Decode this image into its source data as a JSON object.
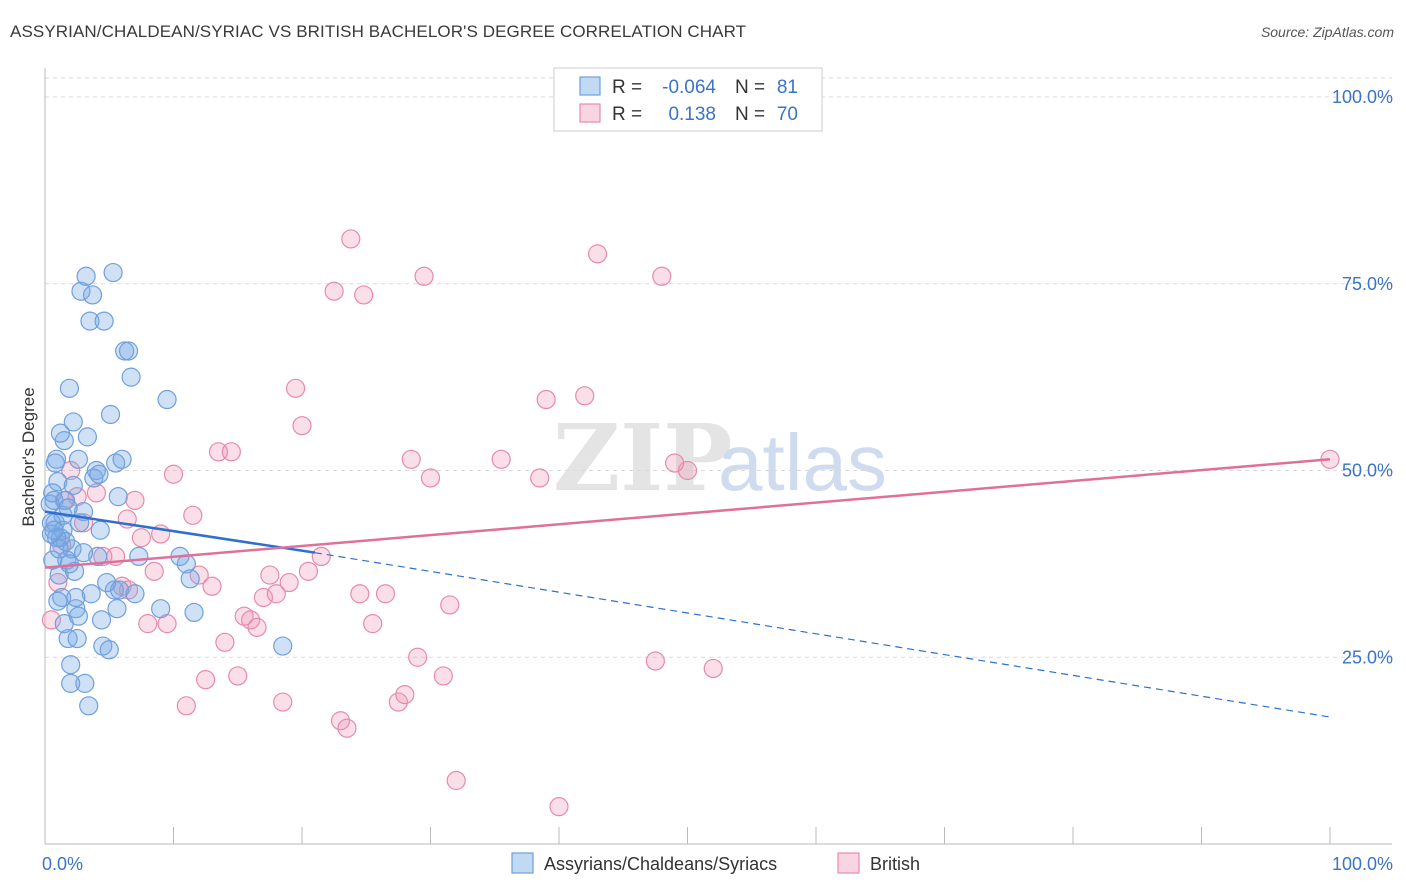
{
  "header": {
    "title": "ASSYRIAN/CHALDEAN/SYRIAC VS BRITISH BACHELOR'S DEGREE CORRELATION CHART",
    "source": "Source: ZipAtlas.com"
  },
  "watermark": {
    "zip": "ZIP",
    "atlas": "atlas"
  },
  "colors": {
    "blue": "#6fa0dd",
    "blue_fill": "rgba(120,170,230,0.35)",
    "blue_line": "#2f6fcf",
    "pink": "#e88aab",
    "pink_fill": "rgba(240,150,180,0.30)",
    "pink_line": "#e07099",
    "tick_text": "#3b73c8",
    "grid": "#d9d9d9"
  },
  "legend": {
    "rows": [
      {
        "r_label": "R =",
        "r_value": "-0.064",
        "n_label": "N =",
        "n_value": "81"
      },
      {
        "r_label": "R =",
        "r_value": "0.138",
        "n_label": "N =",
        "n_value": "70"
      }
    ]
  },
  "chart_data": {
    "type": "scatter",
    "title": "ASSYRIAN/CHALDEAN/SYRIAC VS BRITISH BACHELOR'S DEGREE CORRELATION CHART",
    "xlabel": "",
    "ylabel": "Bachelor's Degree",
    "xlim": [
      0,
      100
    ],
    "ylim": [
      0,
      105
    ],
    "x_tick_labels": [
      "0.0%",
      "100.0%"
    ],
    "y_ticks": [
      25,
      50,
      75,
      100
    ],
    "y_tick_labels": [
      "25.0%",
      "50.0%",
      "75.0%",
      "100.0%"
    ],
    "legend_position": "top-center",
    "series": [
      {
        "name": "Assyrians/Chaldeans/Syriacs",
        "r": -0.064,
        "n": 81,
        "trend": {
          "x0": 0,
          "y0": 44.5,
          "x1": 21,
          "y1": 39,
          "x_dash_end": 100,
          "y_dash_end": 17
        },
        "points": [
          [
            0.4,
            45.5
          ],
          [
            0.5,
            41.5
          ],
          [
            0.6,
            38
          ],
          [
            0.7,
            46
          ],
          [
            0.8,
            43
          ],
          [
            0.9,
            51.5
          ],
          [
            1.0,
            48.5
          ],
          [
            1.1,
            36
          ],
          [
            1.2,
            41
          ],
          [
            1.3,
            33
          ],
          [
            1.4,
            42
          ],
          [
            1.5,
            54
          ],
          [
            1.6,
            40.5
          ],
          [
            1.7,
            38
          ],
          [
            1.8,
            27.5
          ],
          [
            1.9,
            61
          ],
          [
            2.0,
            24
          ],
          [
            2.1,
            39.5
          ],
          [
            2.2,
            56.5
          ],
          [
            2.3,
            36.5
          ],
          [
            2.4,
            31.5
          ],
          [
            2.5,
            27.5
          ],
          [
            2.6,
            51.5
          ],
          [
            2.8,
            74
          ],
          [
            3.0,
            44.5
          ],
          [
            3.1,
            21.5
          ],
          [
            3.2,
            76
          ],
          [
            3.3,
            54.5
          ],
          [
            3.4,
            18.5
          ],
          [
            3.5,
            70
          ],
          [
            3.6,
            33.5
          ],
          [
            3.8,
            49
          ],
          [
            4.0,
            50
          ],
          [
            4.1,
            38.5
          ],
          [
            4.3,
            42
          ],
          [
            4.4,
            30
          ],
          [
            4.5,
            26.5
          ],
          [
            4.6,
            70
          ],
          [
            5.0,
            26
          ],
          [
            5.1,
            57.5
          ],
          [
            5.3,
            76.5
          ],
          [
            5.4,
            34
          ],
          [
            5.5,
            51
          ],
          [
            5.6,
            31.5
          ],
          [
            5.7,
            46.5
          ],
          [
            5.8,
            34
          ],
          [
            6.0,
            51.5
          ],
          [
            6.2,
            66
          ],
          [
            6.5,
            66
          ],
          [
            6.7,
            62.5
          ],
          [
            7.0,
            33.5
          ],
          [
            7.3,
            38.5
          ],
          [
            9.0,
            31.5
          ],
          [
            9.5,
            59.5
          ],
          [
            10.5,
            38.5
          ],
          [
            11.0,
            37.5
          ],
          [
            11.3,
            35.5
          ],
          [
            11.6,
            31
          ],
          [
            1.0,
            32.5
          ],
          [
            0.6,
            47
          ],
          [
            0.8,
            51
          ],
          [
            1.4,
            44
          ],
          [
            1.9,
            37.5
          ],
          [
            2.7,
            43
          ],
          [
            3.7,
            73.5
          ],
          [
            4.2,
            49.5
          ],
          [
            0.5,
            43
          ],
          [
            1.2,
            55
          ],
          [
            1.6,
            46
          ],
          [
            2.0,
            21.5
          ],
          [
            2.4,
            33
          ],
          [
            0.9,
            41
          ],
          [
            1.5,
            29.5
          ],
          [
            3.0,
            39
          ],
          [
            1.8,
            45
          ],
          [
            0.7,
            42
          ],
          [
            2.2,
            48
          ],
          [
            18.5,
            26.5
          ],
          [
            1.1,
            39.5
          ],
          [
            2.6,
            30.5
          ],
          [
            4.8,
            35
          ]
        ]
      },
      {
        "name": "British",
        "r": 0.138,
        "n": 70,
        "trend": {
          "x0": 0,
          "y0": 37,
          "x1": 100,
          "y1": 51.5
        },
        "points": [
          [
            0.5,
            30
          ],
          [
            1.0,
            35
          ],
          [
            1.3,
            40
          ],
          [
            1.5,
            46
          ],
          [
            2.0,
            50
          ],
          [
            2.5,
            46.5
          ],
          [
            3.0,
            43
          ],
          [
            4.0,
            47
          ],
          [
            4.5,
            38.5
          ],
          [
            5.5,
            38.5
          ],
          [
            6.0,
            34.5
          ],
          [
            6.4,
            43.5
          ],
          [
            6.5,
            34
          ],
          [
            7.0,
            46
          ],
          [
            7.5,
            41
          ],
          [
            8.0,
            29.5
          ],
          [
            8.5,
            36.5
          ],
          [
            9.0,
            41.5
          ],
          [
            9.5,
            29.5
          ],
          [
            10.0,
            49.5
          ],
          [
            11.0,
            18.5
          ],
          [
            11.5,
            44
          ],
          [
            12.0,
            36
          ],
          [
            12.5,
            22
          ],
          [
            13.0,
            34.5
          ],
          [
            13.5,
            52.5
          ],
          [
            14.0,
            27
          ],
          [
            14.5,
            52.5
          ],
          [
            15.0,
            22.5
          ],
          [
            15.5,
            30.5
          ],
          [
            16.0,
            30
          ],
          [
            16.5,
            29
          ],
          [
            17.0,
            33
          ],
          [
            17.5,
            36
          ],
          [
            18.0,
            33.5
          ],
          [
            18.5,
            19
          ],
          [
            19.0,
            35
          ],
          [
            19.5,
            61
          ],
          [
            20.0,
            56
          ],
          [
            20.5,
            36.5
          ],
          [
            21.5,
            38.5
          ],
          [
            22.5,
            74
          ],
          [
            23.0,
            16.5
          ],
          [
            23.5,
            15.5
          ],
          [
            23.8,
            81
          ],
          [
            24.5,
            33.5
          ],
          [
            24.8,
            73.5
          ],
          [
            25.5,
            29.5
          ],
          [
            26.5,
            33.5
          ],
          [
            27.5,
            19
          ],
          [
            28.0,
            20
          ],
          [
            28.5,
            51.5
          ],
          [
            29.0,
            25
          ],
          [
            29.5,
            76
          ],
          [
            30.0,
            49
          ],
          [
            31.0,
            22.5
          ],
          [
            31.5,
            32
          ],
          [
            32.0,
            8.5
          ],
          [
            35.5,
            51.5
          ],
          [
            38.5,
            49
          ],
          [
            39.0,
            59.5
          ],
          [
            40.0,
            5
          ],
          [
            42.0,
            60
          ],
          [
            43.0,
            79
          ],
          [
            47.5,
            24.5
          ],
          [
            48.0,
            76
          ],
          [
            49.0,
            51
          ],
          [
            50.0,
            50
          ],
          [
            52.0,
            23.5
          ],
          [
            100,
            51.5
          ]
        ]
      }
    ]
  }
}
